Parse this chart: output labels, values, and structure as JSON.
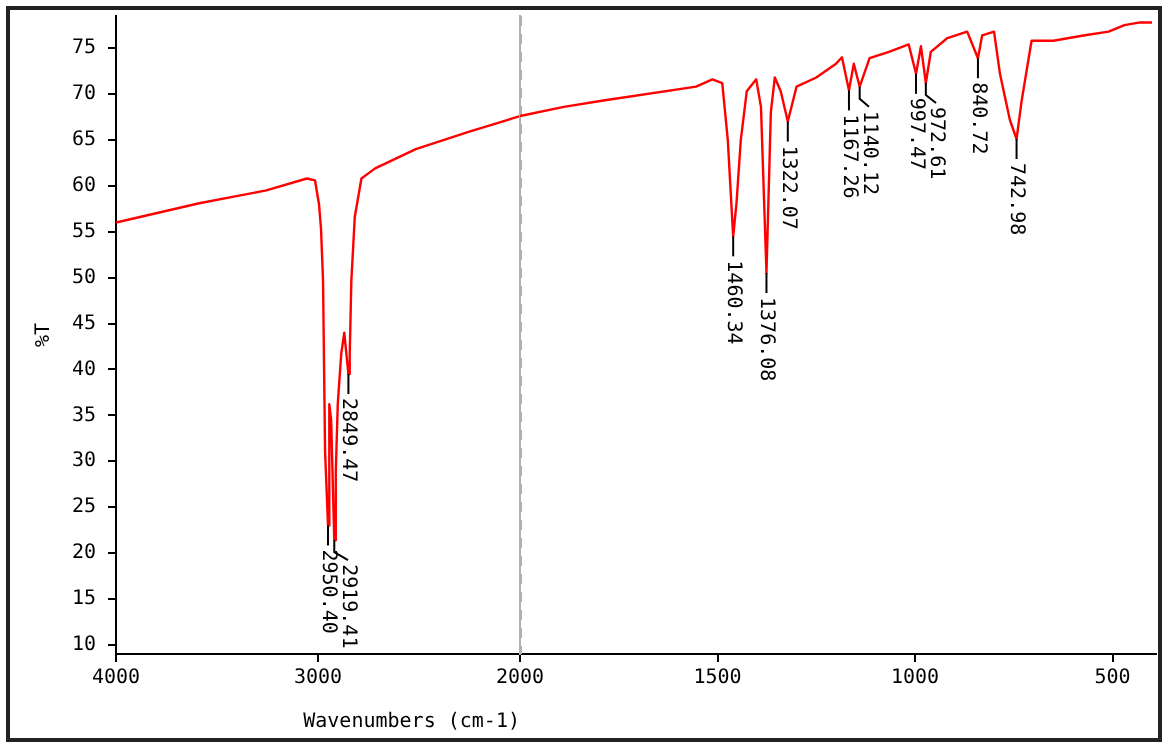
{
  "chart_data": [
    {
      "type": "line",
      "ylabel": "%T",
      "x": [
        4000,
        3588,
        3256,
        3055,
        3015,
        2995,
        2985,
        2975,
        2965,
        2950.4,
        2944,
        2935,
        2919.41,
        2912,
        2902,
        2885,
        2870,
        2849.47,
        2843,
        2835,
        2818,
        2785,
        2754,
        2717,
        2516,
        2251,
        2000
      ],
      "series": [
        {
          "color": "#ff0000",
          "values": [
            56,
            58.1,
            59.5,
            60.8,
            60.6,
            58,
            55.3,
            49.6,
            31.1,
            23,
            36.2,
            34.5,
            21.4,
            28.8,
            36.3,
            41.7,
            44,
            39.5,
            41.5,
            49.6,
            56.6,
            60.8,
            61.3,
            61.9,
            64,
            65.9,
            67.6
          ]
        }
      ],
      "xlim": [
        4000,
        2000
      ],
      "xticks": [
        4000,
        3000,
        {
          "value": 2000,
          "label": null
        }
      ],
      "ylim": [
        9,
        78.5
      ],
      "yticks": [
        10,
        15,
        20,
        25,
        30,
        35,
        40,
        45,
        50,
        55,
        60,
        65,
        70,
        75
      ],
      "grid": false,
      "legend": false,
      "marker": "none",
      "line_style": "solid",
      "annotations": [
        {
          "text": "2950.40",
          "x": 2950.4,
          "y": 23
        },
        {
          "text": "2919.41",
          "x": 2919.41,
          "y": 21.4
        },
        {
          "text": "2849.47",
          "x": 2849.47,
          "y": 39.5
        }
      ]
    },
    {
      "type": "line",
      "xlabel": "Wavenumbers (cm-1)",
      "x": [
        2000,
        1889,
        1789,
        1554,
        1513,
        1488,
        1474,
        1460.34,
        1452,
        1441,
        1426,
        1402,
        1390,
        1376.08,
        1365,
        1355,
        1340,
        1322.07,
        1300,
        1250,
        1200,
        1185,
        1167.26,
        1155,
        1140.12,
        1115,
        1066,
        1016,
        997.47,
        985,
        972.61,
        960,
        918,
        868,
        840.72,
        830,
        800,
        785,
        760,
        742.98,
        730,
        705,
        650,
        570,
        510,
        470,
        430,
        400
      ],
      "series": [
        {
          "color": "#ff0000",
          "values": [
            67.6,
            68.6,
            69.3,
            70.8,
            71.6,
            71.2,
            65,
            54.5,
            58.1,
            65,
            70.3,
            71.6,
            68.6,
            50.5,
            68,
            71.8,
            70.3,
            67,
            70.8,
            71.8,
            73.3,
            74,
            70.4,
            73.3,
            70.8,
            73.9,
            74.6,
            75.4,
            72.2,
            75.2,
            71.2,
            74.6,
            76.1,
            76.8,
            73.9,
            76.4,
            76.8,
            72.2,
            67.2,
            65.1,
            69.3,
            75.8,
            75.8,
            76.4,
            76.8,
            77.5,
            77.8,
            77.8
          ]
        }
      ],
      "xlim": [
        2000,
        390
      ],
      "xticks": [
        2000,
        1500,
        1000,
        500
      ],
      "ylim": [
        9,
        78.5
      ],
      "tick_labels": "x",
      "grid": false,
      "legend": false,
      "marker": "none",
      "line_style": "solid",
      "ref_lines": [
        {
          "axis": "x",
          "value": 2000,
          "color": "#b0b0b0",
          "line_style": "dashed"
        }
      ],
      "annotations": [
        {
          "text": "1460.34",
          "x": 1460.34,
          "y": 54.5
        },
        {
          "text": "1376.08",
          "x": 1376.08,
          "y": 50.5
        },
        {
          "text": "1322.07",
          "x": 1322.07,
          "y": 67
        },
        {
          "text": "1167.26",
          "x": 1167.26,
          "y": 70.4
        },
        {
          "text": "1140.12",
          "x": 1140.12,
          "y": 70.8
        },
        {
          "text": "997.47",
          "x": 997.47,
          "y": 72.2
        },
        {
          "text": "972.61",
          "x": 972.61,
          "y": 71.2
        },
        {
          "text": "840.72",
          "x": 840.72,
          "y": 73.9
        },
        {
          "text": "742.98",
          "x": 742.98,
          "y": 65.1
        }
      ]
    }
  ]
}
